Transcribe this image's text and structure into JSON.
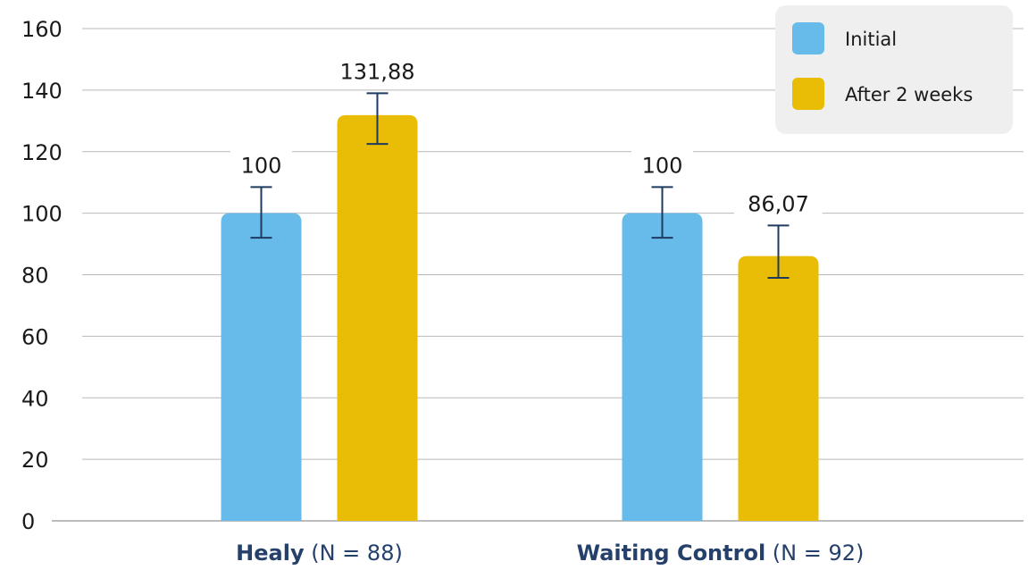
{
  "chart_data": {
    "type": "bar",
    "categories": [
      {
        "name": "Healy",
        "note": "(N = 88)"
      },
      {
        "name": "Waiting Control",
        "note": "(N = 92)"
      }
    ],
    "series": [
      {
        "name": "Initial",
        "color": "#66bbea",
        "values": [
          100,
          100
        ],
        "value_labels": [
          "100",
          "100"
        ],
        "error": [
          [
            92,
            108.5
          ],
          [
            92,
            108.5
          ]
        ]
      },
      {
        "name": "After 2 weeks",
        "color": "#e9bd06",
        "values": [
          131.88,
          86.07
        ],
        "value_labels": [
          "131,88",
          "86,07"
        ],
        "error": [
          [
            122.5,
            139
          ],
          [
            79,
            96
          ]
        ]
      }
    ],
    "ylim": [
      0,
      160
    ],
    "yticks": [
      0,
      20,
      40,
      60,
      80,
      100,
      120,
      140,
      160
    ],
    "grid": true,
    "legend_position": "top-right",
    "error_bar_color": "#1f3a5f"
  }
}
